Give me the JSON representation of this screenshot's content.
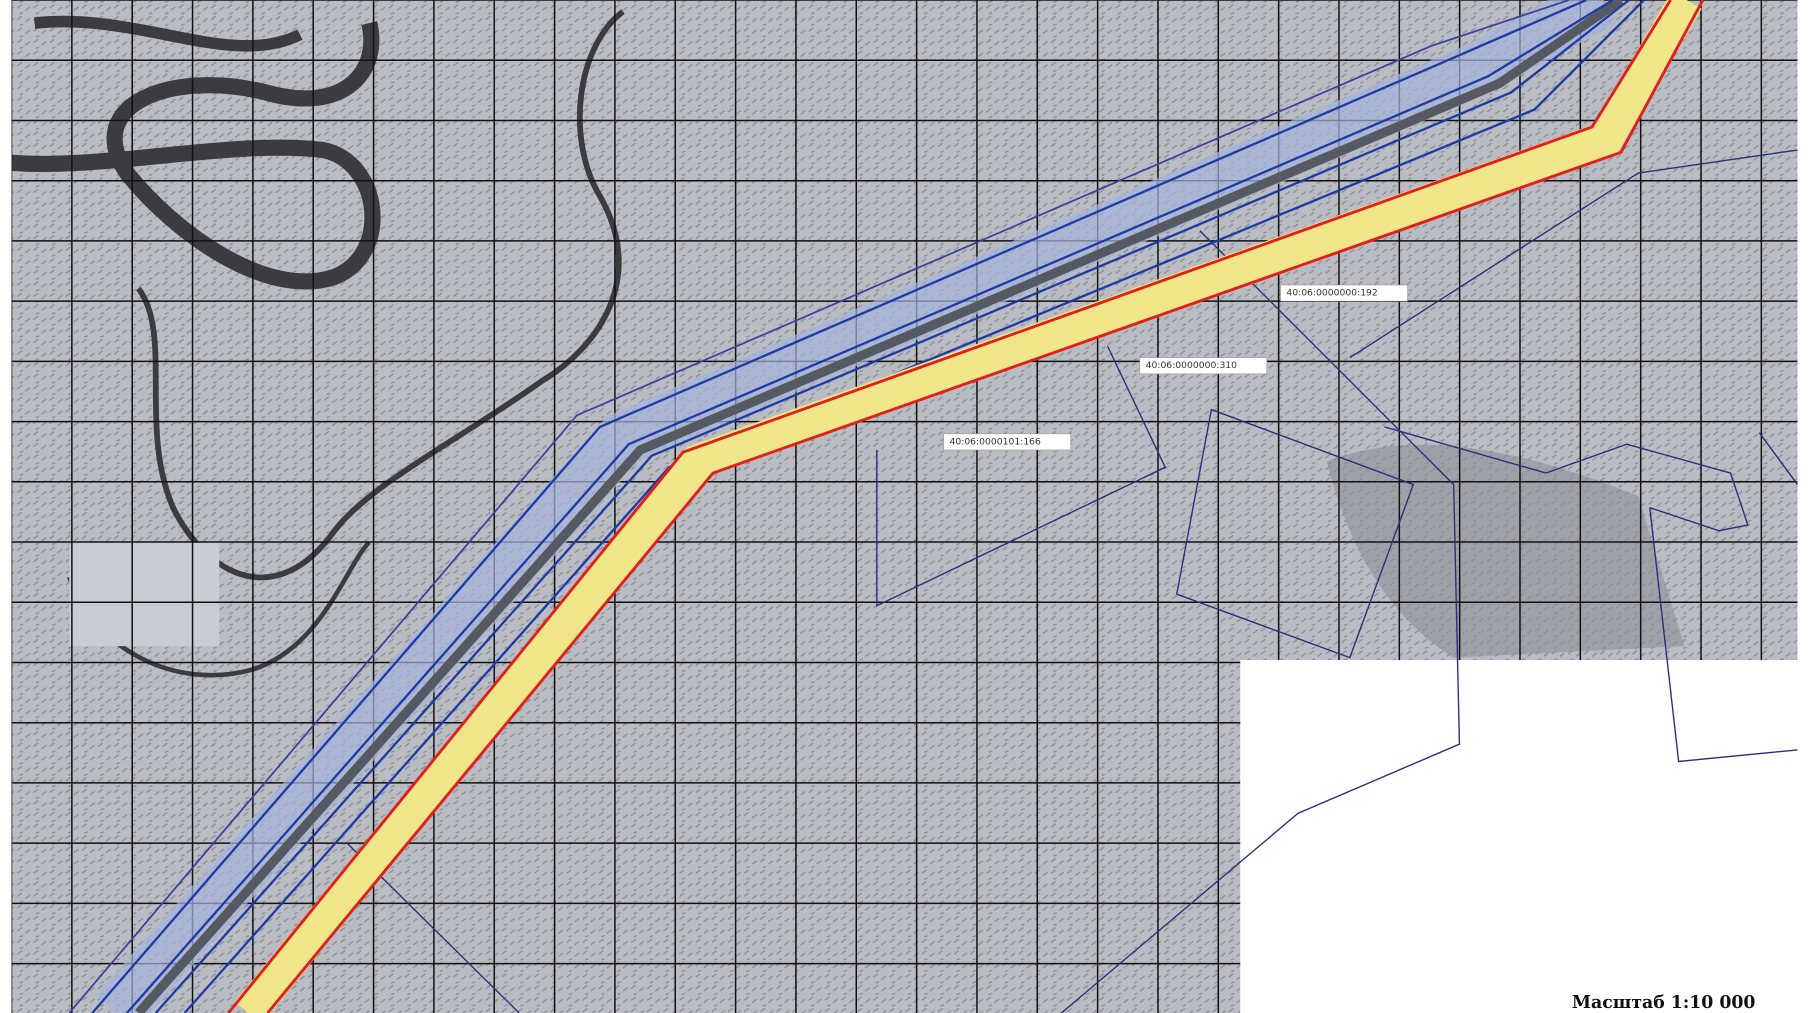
{
  "parcels": [
    {
      "label": "40:06:0000000:192"
    },
    {
      "label": "40:06:0000000:310"
    },
    {
      "label": "40:06:0000101:166"
    }
  ],
  "scale": "Масштаб 1:10 000"
}
